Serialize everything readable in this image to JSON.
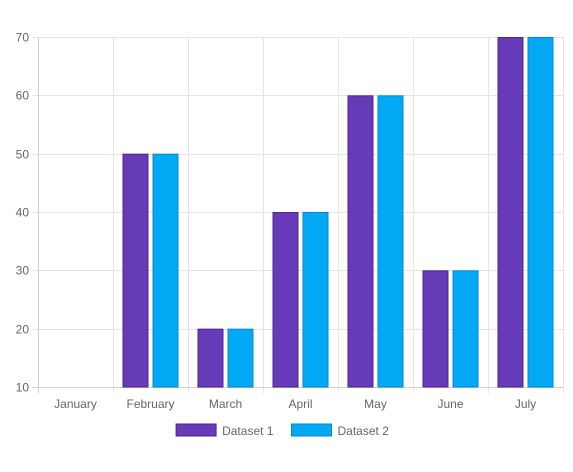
{
  "chart_data": {
    "type": "bar",
    "categories": [
      "January",
      "February",
      "March",
      "April",
      "May",
      "June",
      "July"
    ],
    "series": [
      {
        "name": "Dataset 1",
        "color": "#673ab7",
        "border": "#4b2590",
        "values": [
          10,
          50,
          20,
          40,
          60,
          30,
          70
        ]
      },
      {
        "name": "Dataset 2",
        "color": "#03a9f4",
        "border": "#0288d1",
        "values": [
          10,
          50,
          20,
          40,
          60,
          30,
          70
        ]
      }
    ],
    "ylim": [
      10,
      70
    ],
    "yticks": [
      10,
      20,
      30,
      40,
      50,
      60,
      70
    ],
    "grid": true,
    "legend_position": "bottom"
  }
}
